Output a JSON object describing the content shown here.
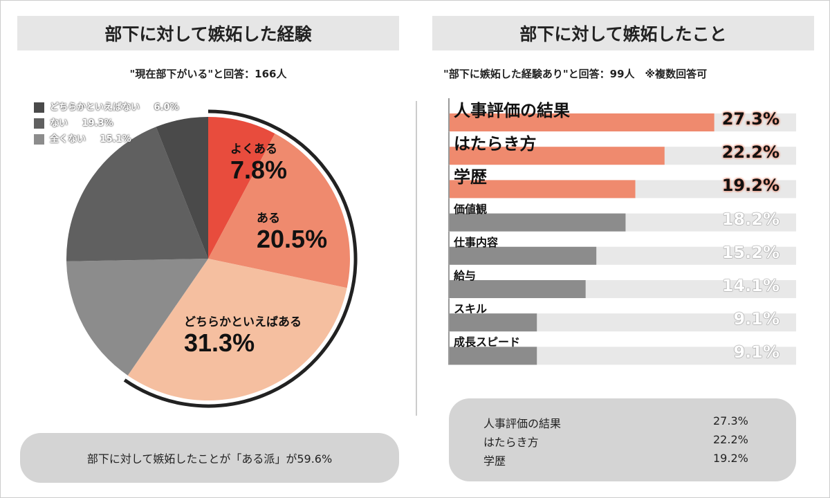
{
  "left": {
    "title": "部下に対して嫉妬した経験",
    "subtitle": "\"現在部下がいる\"と回答：166人",
    "summary": "部下に対して嫉妬したことが「ある派」が59.6%"
  },
  "right": {
    "title": "部下に対して嫉妬したこと",
    "subtitle": "\"部下に嫉妬した経験あり\"と回答：99人　※複数回答可",
    "summary": [
      {
        "label": "人事評価の結果",
        "value": "27.3%"
      },
      {
        "label": "はたらき方",
        "value": "22.2%"
      },
      {
        "label": "学歴",
        "value": "19.2%"
      }
    ]
  },
  "chart_data": [
    {
      "type": "pie",
      "title": "部下に対して嫉妬した経験",
      "slices": [
        {
          "label": "よくある",
          "value": 7.8,
          "display": "7.8%",
          "color": "#e84c3d"
        },
        {
          "label": "ある",
          "value": 20.5,
          "display": "20.5%",
          "color": "#ef8a6e"
        },
        {
          "label": "どちらかといえばある",
          "value": 31.3,
          "display": "31.3%",
          "color": "#f5bfa0"
        },
        {
          "label": "全くない",
          "value": 15.1,
          "display": "15.1%",
          "color": "#8c8c8c"
        },
        {
          "label": "ない",
          "value": 19.3,
          "display": "19.3%",
          "color": "#606060"
        },
        {
          "label": "どちらかといえばない",
          "value": 6.0,
          "display": "6.0%",
          "color": "#4a4a4a"
        }
      ],
      "legend": [
        {
          "label": "どちらかといえばない",
          "display": "6.0%",
          "color": "#4a4a4a"
        },
        {
          "label": "ない",
          "display": "19.3%",
          "color": "#606060"
        },
        {
          "label": "全くない",
          "display": "15.1%",
          "color": "#8c8c8c"
        }
      ],
      "legend_position": "top-left",
      "highlight_group_total": 59.6
    },
    {
      "type": "bar",
      "orientation": "horizontal",
      "title": "部下に対して嫉妬したこと",
      "categories": [
        "人事評価の結果",
        "はたらき方",
        "学歴",
        "価値観",
        "仕事内容",
        "給与",
        "スキル",
        "成長スピード"
      ],
      "values": [
        27.3,
        22.2,
        19.2,
        18.2,
        15.2,
        14.1,
        9.1,
        9.1
      ],
      "displays": [
        "27.3%",
        "22.2%",
        "19.2%",
        "18.2%",
        "15.2%",
        "14.1%",
        "9.1%",
        "9.1%"
      ],
      "highlight_color": "#ef8a6e",
      "other_color": "#8c8c8c",
      "track_color": "#e8e8e8",
      "highlighted_top": 3
    }
  ]
}
